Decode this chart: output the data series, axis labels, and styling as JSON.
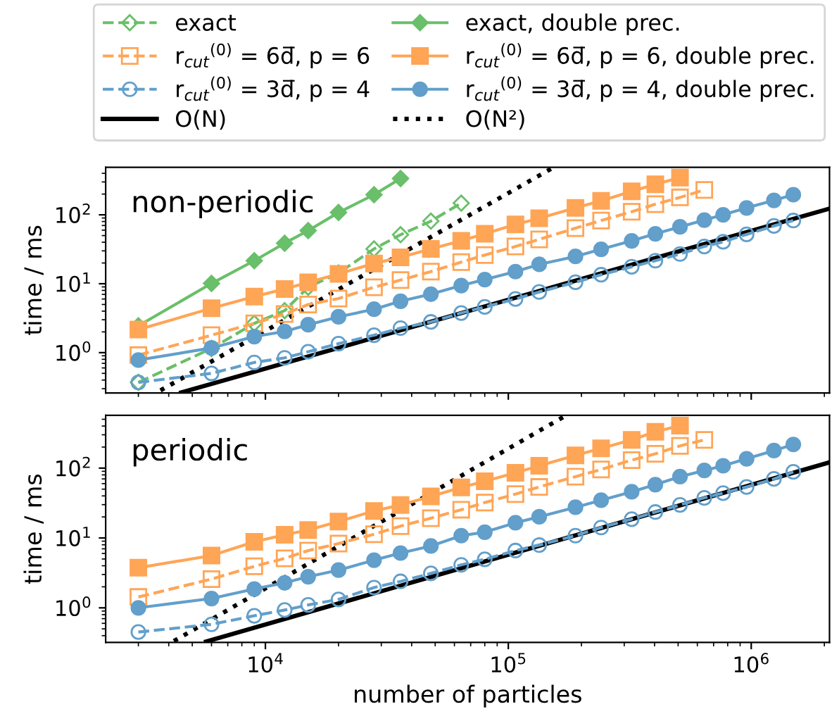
{
  "chart_data": [
    {
      "type": "line",
      "title": "non-periodic",
      "ylabel": "time / ms",
      "log": "xy",
      "xlim": [
        2200,
        2100000
      ],
      "ylim": [
        0.26,
        490
      ],
      "xticks": [
        {
          "value": 10000,
          "label": null
        },
        {
          "value": 100000,
          "label": null
        },
        {
          "value": 1000000,
          "label": null
        }
      ],
      "yticks": [
        {
          "value": 1,
          "label": "10$^{0}$"
        },
        {
          "value": 10,
          "label": "10$^{1}$"
        },
        {
          "value": 100,
          "label": "10$^{2}$"
        }
      ],
      "tick_labels": "y",
      "legend": "top",
      "grid": false,
      "series": [
        {
          "name": "exact",
          "color": "#6abf6a",
          "marker": "diamond",
          "line_style": "dashed",
          "x": [
            3000,
            6000,
            9000,
            12000,
            15000,
            20000,
            28000,
            36000,
            48000,
            64000
          ],
          "values": [
            0.37,
            1.15,
            2.66,
            4.07,
            8.9,
            14.3,
            32,
            51.5,
            81,
            148
          ]
        },
        {
          "name": "r$_{cut}$$^{(0)}$ = 6d̅, p = 6",
          "color": "#ffa556",
          "marker": "square",
          "line_style": "dashed",
          "x": [
            3000,
            6000,
            9000,
            12000,
            15000,
            20000,
            28000,
            36000,
            48000,
            64000,
            80000,
            107000,
            134000,
            189000,
            241000,
            322000,
            403000,
            509000,
            641000
          ],
          "values": [
            0.92,
            1.79,
            2.66,
            3.64,
            4.99,
            6.1,
            8.9,
            11.3,
            15,
            20.6,
            26.1,
            34.7,
            44,
            64,
            82.6,
            111,
            143,
            179,
            230
          ]
        },
        {
          "name": "r$_{cut}$$^{(0)}$ = 3d̅, p = 4",
          "color": "#629fcb",
          "marker": "circle",
          "line_style": "dashed",
          "x": [
            3000,
            6000,
            9000,
            12000,
            15000,
            20000,
            28000,
            36000,
            48000,
            64000,
            80000,
            107000,
            134000,
            189000,
            241000,
            322000,
            403000,
            509000,
            641000,
            766000,
            957000,
            1240000,
            1490000
          ],
          "values": [
            0.37,
            0.5,
            0.72,
            0.84,
            1.03,
            1.35,
            1.79,
            2.27,
            2.79,
            3.76,
            4.61,
            6.0,
            7.6,
            10.5,
            13.5,
            17.6,
            21.6,
            27,
            34.7,
            40.6,
            52,
            69,
            82.6
          ]
        },
        {
          "name": "O(N)",
          "color": "#000000",
          "marker": "none",
          "line_style": "solid",
          "x": [
            4500,
            2100000
          ],
          "values": [
            0.264,
            123
          ]
        },
        {
          "name": "exact, double prec.",
          "color": "#6abf6a",
          "marker": "diamond",
          "line_style": "solid",
          "x": [
            3000,
            6000,
            9000,
            12000,
            15000,
            20000,
            28000,
            36000
          ],
          "values": [
            2.45,
            10.1,
            21.6,
            38.7,
            59,
            108,
            196,
            336
          ]
        },
        {
          "name": "r$_{cut}$$^{(0)}$ = 6d̅, p = 6, double prec.",
          "color": "#ffa556",
          "marker": "square",
          "line_style": "solid",
          "x": [
            3000,
            6000,
            9000,
            12000,
            15000,
            20000,
            28000,
            36000,
            48000,
            64000,
            80000,
            107000,
            134000,
            189000,
            241000,
            322000,
            403000,
            509000
          ],
          "values": [
            2.16,
            4.4,
            6.5,
            8.4,
            10.5,
            13.9,
            19.7,
            24.1,
            32,
            41.9,
            53,
            72.7,
            89,
            126,
            160,
            219,
            278,
            347
          ]
        },
        {
          "name": "r$_{cut}$$^{(0)}$ = 3d̅, p = 4, double prec.",
          "color": "#629fcb",
          "marker": "circle",
          "line_style": "solid",
          "x": [
            3000,
            6000,
            9000,
            12000,
            15000,
            20000,
            28000,
            36000,
            48000,
            64000,
            80000,
            107000,
            134000,
            189000,
            241000,
            322000,
            403000,
            509000,
            641000,
            766000,
            957000,
            1240000,
            1490000
          ],
          "values": [
            0.78,
            1.17,
            1.71,
            2.03,
            2.54,
            3.31,
            4.26,
            5.57,
            7.06,
            9.4,
            11.5,
            15,
            19.1,
            24.9,
            31.6,
            41.9,
            53,
            67,
            84,
            100,
            126,
            162,
            196
          ]
        },
        {
          "name": "O(N²)",
          "color": "#000000",
          "marker": "none",
          "line_style": "dotted",
          "x": [
            3700,
            150000
          ],
          "values": [
            0.283,
            466
          ]
        }
      ]
    },
    {
      "type": "line",
      "title": "periodic",
      "xlabel": "number of particles",
      "ylabel": "time / ms",
      "log": "xy",
      "xlim": [
        2200,
        2100000
      ],
      "ylim": [
        0.32,
        570
      ],
      "xticks": [
        {
          "value": 10000,
          "label": "10$^{4}$"
        },
        {
          "value": 100000,
          "label": "10$^{5}$"
        },
        {
          "value": 1000000,
          "label": "10$^{6}$"
        }
      ],
      "yticks": [
        {
          "value": 1,
          "label": "10$^{0}$"
        },
        {
          "value": 10,
          "label": "10$^{1}$"
        },
        {
          "value": 100,
          "label": "10$^{2}$"
        }
      ],
      "grid": false,
      "series": [
        {
          "color": "#ffa556",
          "marker": "square",
          "line_style": "dashed",
          "x": [
            3000,
            6000,
            9000,
            12000,
            15000,
            20000,
            28000,
            36000,
            48000,
            64000,
            80000,
            107000,
            134000,
            189000,
            241000,
            322000,
            403000,
            509000,
            641000
          ],
          "values": [
            1.43,
            2.58,
            3.93,
            5.1,
            6.6,
            8.3,
            11.3,
            14.8,
            19.2,
            25.4,
            32.1,
            42.5,
            53.7,
            75.5,
            95.5,
            130,
            160,
            208,
            254
          ]
        },
        {
          "color": "#629fcb",
          "marker": "circle",
          "line_style": "dashed",
          "x": [
            3000,
            6000,
            9000,
            12000,
            15000,
            20000,
            28000,
            36000,
            48000,
            64000,
            80000,
            107000,
            134000,
            189000,
            241000,
            322000,
            403000,
            509000,
            641000,
            766000,
            957000,
            1240000,
            1490000
          ],
          "values": [
            0.45,
            0.58,
            0.77,
            0.93,
            1.1,
            1.32,
            1.95,
            2.39,
            3.11,
            4.12,
            4.96,
            6.6,
            7.9,
            10.8,
            14.1,
            18.6,
            23.5,
            29.7,
            37.5,
            43.8,
            53.7,
            70,
            88.3
          ]
        },
        {
          "color": "#000000",
          "marker": "none",
          "line_style": "solid",
          "x": [
            5700,
            2100000
          ],
          "values": [
            0.329,
            121
          ]
        },
        {
          "color": "#ffa556",
          "marker": "square",
          "line_style": "solid",
          "x": [
            3000,
            6000,
            9000,
            12000,
            15000,
            20000,
            28000,
            36000,
            48000,
            64000,
            80000,
            107000,
            134000,
            189000,
            241000,
            322000,
            403000,
            509000
          ],
          "values": [
            3.75,
            5.6,
            8.8,
            11.1,
            13,
            17.2,
            24.3,
            29.7,
            39.3,
            52.9,
            64.7,
            85.5,
            108,
            152,
            192,
            254,
            331,
            405
          ]
        },
        {
          "color": "#629fcb",
          "marker": "circle",
          "line_style": "solid",
          "x": [
            3000,
            6000,
            9000,
            12000,
            15000,
            20000,
            28000,
            36000,
            48000,
            64000,
            80000,
            107000,
            134000,
            189000,
            241000,
            322000,
            403000,
            509000,
            641000,
            766000,
            957000,
            1240000,
            1490000
          ],
          "values": [
            1.0,
            1.36,
            1.86,
            2.28,
            2.79,
            3.47,
            4.81,
            6.08,
            7.67,
            10.8,
            12.1,
            16.5,
            20.1,
            27.5,
            34.7,
            45.9,
            58,
            75.5,
            92.5,
            108,
            136,
            178,
            218
          ]
        },
        {
          "color": "#000000",
          "marker": "none",
          "line_style": "dotted",
          "x": [
            4200,
            170000
          ],
          "values": [
            0.335,
            549
          ]
        }
      ]
    }
  ]
}
